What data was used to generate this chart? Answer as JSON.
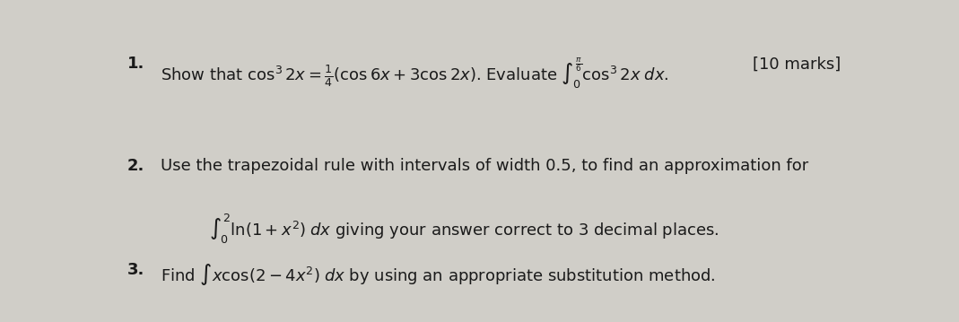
{
  "background_color": "#d0cec8",
  "text_color": "#1a1a1a",
  "fig_width": 10.69,
  "fig_height": 3.59,
  "dpi": 100,
  "line1_number": "1.",
  "line1_marks": "[10 marks]",
  "line2_number": "2.",
  "line3_number": "3."
}
